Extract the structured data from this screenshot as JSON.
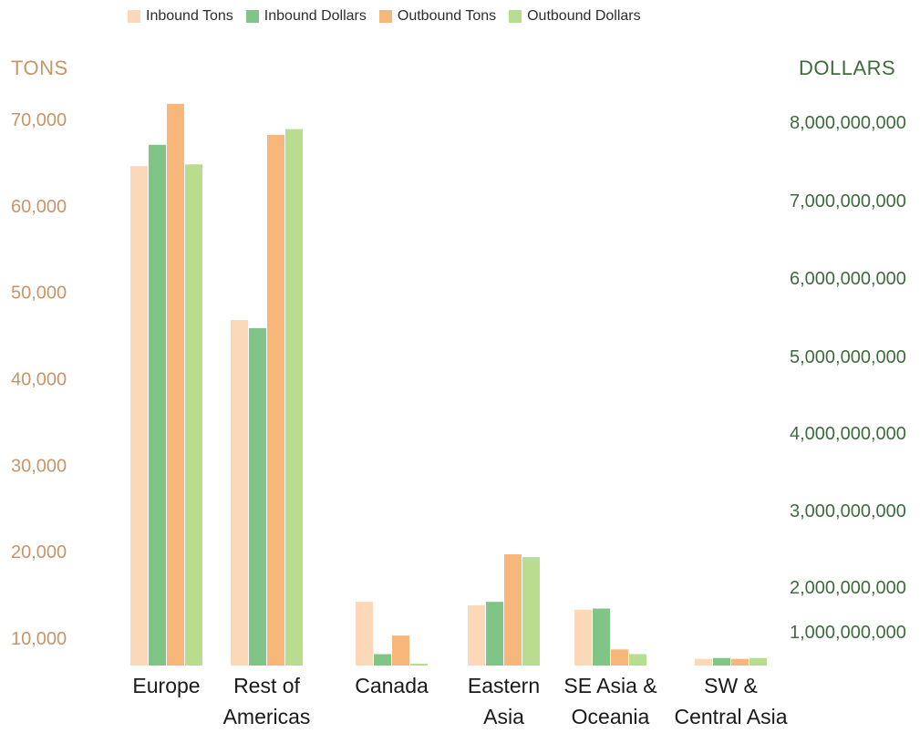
{
  "colors": {
    "inbound_tons": "#fbd9b8",
    "inbound_dollars": "#80c587",
    "outbound_tons": "#f7b77a",
    "outbound_dollars": "#b8dd8e",
    "left_axis_text": "#c8956a",
    "right_axis_text": "#3e6b3e",
    "category_text": "#1a1a1a"
  },
  "chart_data": {
    "type": "bar",
    "title": "",
    "categories": [
      [
        "Europe"
      ],
      [
        "Rest of",
        "Americas"
      ],
      [
        "Canada"
      ],
      [
        "Eastern",
        "Asia"
      ],
      [
        "SE Asia &",
        "Oceania"
      ],
      [
        "SW &",
        "Central Asia"
      ]
    ],
    "left_axis": {
      "label": "TONS",
      "ticks": [
        10000,
        20000,
        30000,
        40000,
        50000,
        60000,
        70000
      ],
      "tick_labels": [
        "10,000",
        "20,000",
        "30,000",
        "40,000",
        "50,000",
        "60,000",
        "70,000"
      ],
      "range": [
        7000,
        72200
      ]
    },
    "right_axis": {
      "label": "DOLLARS",
      "ticks": [
        1000000000,
        2000000000,
        3000000000,
        4000000000,
        5000000000,
        6000000000,
        7000000000,
        8000000000
      ],
      "tick_labels": [
        "1,000,000,000",
        "2,000,000,000",
        "3,000,000,000",
        "4,000,000,000",
        "5,000,000,000",
        "6,000,000,000",
        "7,000,000,000",
        "8,000,000,000"
      ],
      "range": [
        500000000,
        8500000000
      ]
    },
    "series": [
      {
        "name": "Inbound Tons",
        "axis": "left",
        "color_key": "inbound_tons",
        "values": [
          64500,
          46700,
          14100,
          13700,
          13200,
          7500
        ]
      },
      {
        "name": "Inbound Dollars",
        "axis": "right",
        "color_key": "inbound_dollars",
        "values": [
          7700000000,
          5350000000,
          700000000,
          1650000000,
          1500000000,
          650000000
        ]
      },
      {
        "name": "Outbound Tons",
        "axis": "left",
        "color_key": "outbound_tons",
        "values": [
          8200000000,
          7950000000,
          860000000,
          2350000000,
          700000000,
          550000000
        ],
        "values_tons": null
      },
      {
        "name": "Outbound Dollars",
        "axis": "right",
        "color_key": "outbound_dollars",
        "values": [
          8450000000,
          7900000000,
          550000000,
          2380000000,
          700000000,
          650000000
        ]
      }
    ],
    "grid": false,
    "legend": "top"
  }
}
